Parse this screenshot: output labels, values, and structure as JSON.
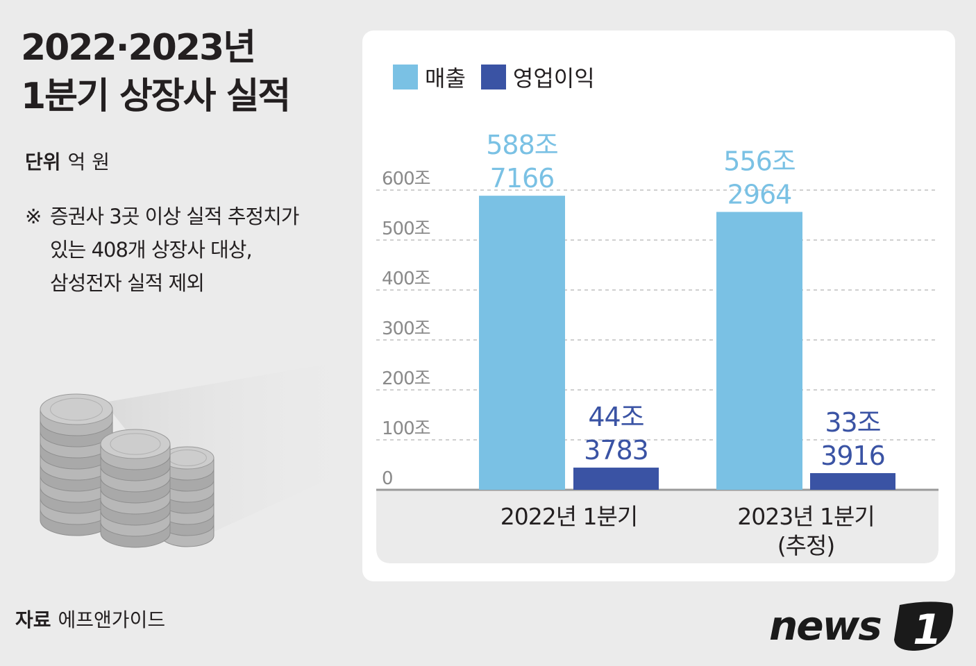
{
  "title_lines": [
    "2022·2023년",
    "1분기 상장사 실적"
  ],
  "unit": {
    "label": "단위",
    "value": "억 원"
  },
  "note": {
    "mark": "※",
    "lines": [
      "증권사 3곳 이상 실적 추정치가",
      "있는 408개 상장사 대상,",
      "삼성전자 실적 제외"
    ]
  },
  "source": {
    "label": "자료",
    "value": "에프앤가이드"
  },
  "logo": {
    "text": "news",
    "number": "1"
  },
  "colors": {
    "sales": "#7ac1e4",
    "operating_profit": "#3a53a4",
    "panel": "#ffffff",
    "plot_bg": "#ebebeb"
  },
  "chart_data": {
    "type": "bar",
    "categories": [
      "2022년 1분기",
      "2023년 1분기 (추정)"
    ],
    "category_lines": [
      [
        "2022년 1분기"
      ],
      [
        "2023년 1분기",
        "(추정)"
      ]
    ],
    "series": [
      {
        "name": "매출",
        "values": [
          5887166,
          5562964
        ],
        "labels": [
          [
            "588조",
            "7166"
          ],
          [
            "556조",
            "2964"
          ]
        ]
      },
      {
        "name": "영업이익",
        "values": [
          443783,
          333916
        ],
        "labels": [
          [
            "44조",
            "3783"
          ],
          [
            "33조",
            "3916"
          ]
        ]
      }
    ],
    "y_ticks": [
      0,
      1000000,
      2000000,
      3000000,
      4000000,
      5000000,
      6000000
    ],
    "y_tick_labels": [
      "0",
      "100조",
      "200조",
      "300조",
      "400조",
      "500조",
      "600조"
    ],
    "ylim": [
      0,
      6000000
    ],
    "grid": true,
    "legend_position": "top-left"
  }
}
